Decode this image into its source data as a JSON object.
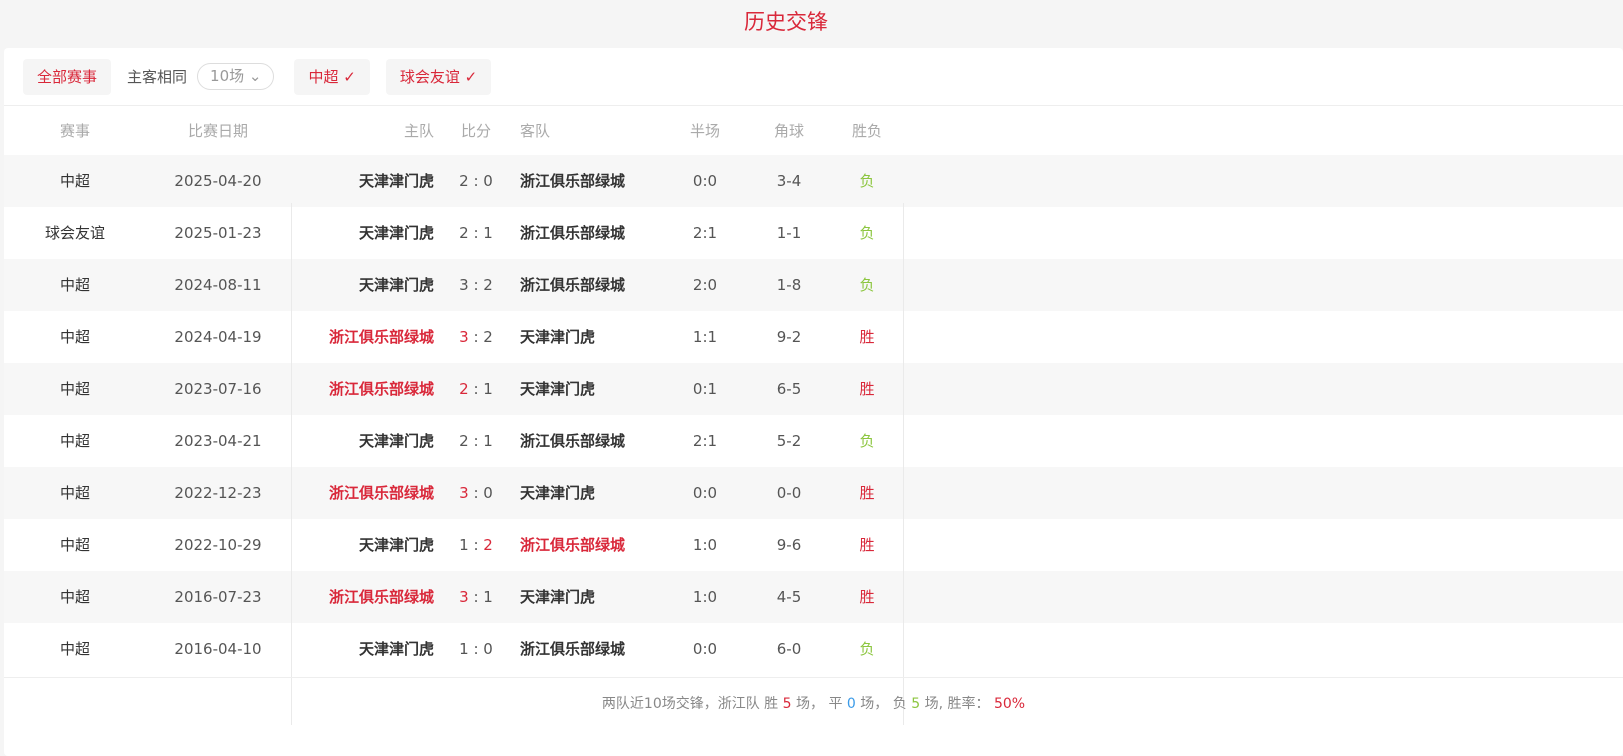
{
  "title": "历史交锋",
  "filters": {
    "all": "全部赛事",
    "same_label": "主客相同",
    "count": "10场",
    "league1": "中超",
    "league2": "球会友谊"
  },
  "columns": [
    "赛事",
    "比赛日期",
    "主队",
    "比分",
    "客队",
    "半场",
    "角球",
    "胜负"
  ],
  "colors": {
    "accent": "#d9283a",
    "win": "#d9283a",
    "loss": "#8cc63f",
    "draw": "#3b9be8"
  },
  "rows": [
    {
      "league": "中超",
      "date": "2025-04-20",
      "home": "天津津门虎",
      "hs": "2",
      "as": "0",
      "away": "浙江俱乐部绿城",
      "half": "0:0",
      "corner": "3-4",
      "result": "负"
    },
    {
      "league": "球会友谊",
      "date": "2025-01-23",
      "home": "天津津门虎",
      "hs": "2",
      "as": "1",
      "away": "浙江俱乐部绿城",
      "half": "2:1",
      "corner": "1-1",
      "result": "负"
    },
    {
      "league": "中超",
      "date": "2024-08-11",
      "home": "天津津门虎",
      "hs": "3",
      "as": "2",
      "away": "浙江俱乐部绿城",
      "half": "2:0",
      "corner": "1-8",
      "result": "负"
    },
    {
      "league": "中超",
      "date": "2024-04-19",
      "home": "浙江俱乐部绿城",
      "hs": "3",
      "as": "2",
      "away": "天津津门虎",
      "half": "1:1",
      "corner": "9-2",
      "result": "胜"
    },
    {
      "league": "中超",
      "date": "2023-07-16",
      "home": "浙江俱乐部绿城",
      "hs": "2",
      "as": "1",
      "away": "天津津门虎",
      "half": "0:1",
      "corner": "6-5",
      "result": "胜"
    },
    {
      "league": "中超",
      "date": "2023-04-21",
      "home": "天津津门虎",
      "hs": "2",
      "as": "1",
      "away": "浙江俱乐部绿城",
      "half": "2:1",
      "corner": "5-2",
      "result": "负"
    },
    {
      "league": "中超",
      "date": "2022-12-23",
      "home": "浙江俱乐部绿城",
      "hs": "3",
      "as": "0",
      "away": "天津津门虎",
      "half": "0:0",
      "corner": "0-0",
      "result": "胜"
    },
    {
      "league": "中超",
      "date": "2022-10-29",
      "home": "天津津门虎",
      "hs": "1",
      "as": "2",
      "away": "浙江俱乐部绿城",
      "half": "1:0",
      "corner": "9-6",
      "result": "胜"
    },
    {
      "league": "中超",
      "date": "2016-07-23",
      "home": "浙江俱乐部绿城",
      "hs": "3",
      "as": "1",
      "away": "天津津门虎",
      "half": "1:0",
      "corner": "4-5",
      "result": "胜"
    },
    {
      "league": "中超",
      "date": "2016-04-10",
      "home": "天津津门虎",
      "hs": "1",
      "as": "0",
      "away": "浙江俱乐部绿城",
      "half": "0:0",
      "corner": "6-0",
      "result": "负"
    }
  ],
  "highlight_team": "浙江俱乐部绿城",
  "summary": {
    "prefix": "两队近10场交锋，浙江队 胜",
    "wins": "5",
    "t1": "场， 平",
    "draws": "0",
    "t2": "场， 负",
    "losses": "5",
    "t3": "场, 胜率：",
    "rate": "50%"
  }
}
